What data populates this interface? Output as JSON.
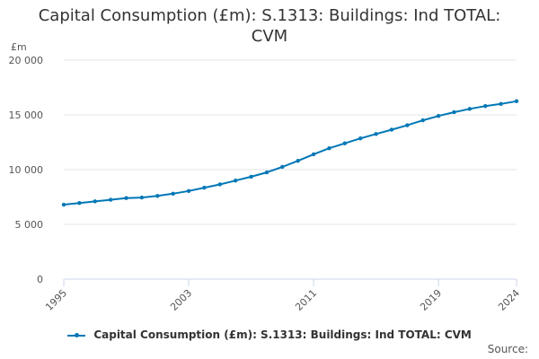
{
  "chart_data": {
    "type": "line",
    "title_line1": "Capital Consumption (£m): S.1313: Buildings: Ind TOTAL:",
    "title_line2": "CVM",
    "ylabel": "£m",
    "ylim": [
      0,
      20000
    ],
    "yticks": [
      0,
      5000,
      10000,
      15000,
      20000
    ],
    "ytick_labels": [
      "0",
      "5 000",
      "10 000",
      "15 000",
      "20 000"
    ],
    "xlim": [
      1995,
      2024
    ],
    "xticks": [
      1995,
      2003,
      2011,
      2019,
      2024
    ],
    "xtick_labels": [
      "1995",
      "2003",
      "2011",
      "2019",
      "2024"
    ],
    "grid": true,
    "legend_position": "bottom",
    "color": "#0077b6",
    "series": [
      {
        "name": "Capital Consumption (£m): S.1313: Buildings: Ind TOTAL: CVM",
        "x": [
          1995,
          1996,
          1997,
          1998,
          1999,
          2000,
          2001,
          2002,
          2003,
          2004,
          2005,
          2006,
          2007,
          2008,
          2009,
          2010,
          2011,
          2012,
          2013,
          2014,
          2015,
          2016,
          2017,
          2018,
          2019,
          2020,
          2021,
          2022,
          2023,
          2024
        ],
        "values": [
          6800,
          6950,
          7100,
          7250,
          7400,
          7450,
          7600,
          7800,
          8050,
          8350,
          8650,
          9000,
          9350,
          9750,
          10250,
          10800,
          11400,
          11950,
          12400,
          12850,
          13250,
          13650,
          14050,
          14500,
          14900,
          15250,
          15550,
          15800,
          16000,
          16250
        ]
      }
    ]
  },
  "source_label": "Source:"
}
